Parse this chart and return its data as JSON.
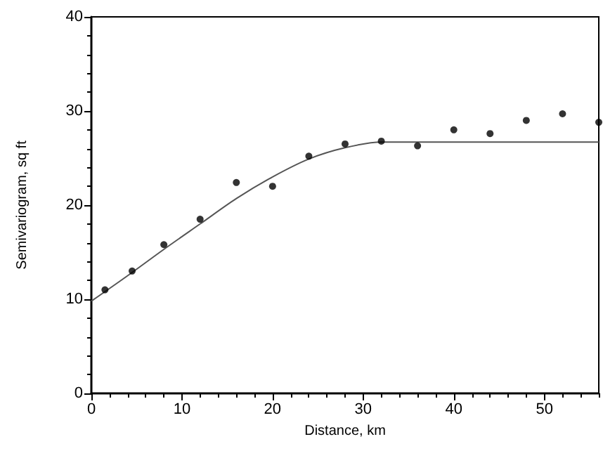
{
  "chart_data": {
    "type": "scatter",
    "xlabel": "Distance, km",
    "ylabel": "Semivariogram, sq ft",
    "xlim": [
      0,
      56
    ],
    "ylim": [
      0,
      40
    ],
    "xticks": [
      0,
      10,
      20,
      30,
      40,
      50
    ],
    "yticks": [
      0,
      10,
      20,
      30,
      40
    ],
    "grid": false,
    "marker": "circle",
    "series": [
      {
        "color": "#000000",
        "x": [
          1.5,
          4.5,
          8,
          12,
          16,
          20,
          24,
          28,
          32,
          36,
          40,
          44,
          48,
          52,
          56
        ],
        "values": [
          11,
          13,
          15.8,
          18.5,
          22.4,
          22,
          25.2,
          26.5,
          26.8,
          26.3,
          28,
          27.6,
          29,
          29.7,
          28.8
        ]
      },
      {
        "type": "line",
        "color": "#555555",
        "marker": "none",
        "line_style": "solid",
        "x": [
          0,
          4,
          8,
          12,
          16,
          20,
          24,
          28,
          32,
          56
        ],
        "values": [
          9.8,
          12.5,
          15.3,
          18,
          20.7,
          23,
          24.9,
          26.1,
          26.7,
          26.7
        ]
      }
    ]
  }
}
